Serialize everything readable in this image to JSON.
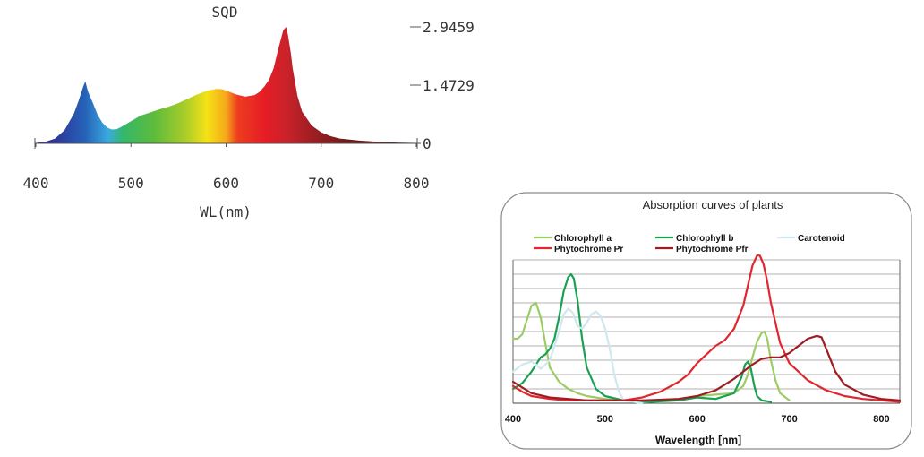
{
  "chart_data": [
    {
      "type": "area",
      "title": "SQD",
      "xlabel": "WL(nm)",
      "ylabel": "",
      "xlim": [
        400,
        800
      ],
      "ylim": [
        0,
        2.9459
      ],
      "x_ticks": [
        "400",
        "500",
        "600",
        "700",
        "800"
      ],
      "y_ticks": [
        "2.9459",
        "1.4729",
        "0"
      ],
      "y_tick_values": [
        2.9459,
        1.4729,
        0
      ],
      "x_tick_values": [
        400,
        500,
        600,
        700,
        800
      ],
      "series": [
        {
          "name": "SQD",
          "x": [
            400,
            410,
            420,
            430,
            440,
            445,
            450,
            452,
            455,
            460,
            465,
            470,
            475,
            480,
            485,
            490,
            500,
            510,
            520,
            530,
            540,
            550,
            560,
            570,
            580,
            590,
            595,
            600,
            610,
            620,
            630,
            635,
            640,
            645,
            650,
            655,
            660,
            663,
            665,
            668,
            670,
            675,
            680,
            690,
            700,
            710,
            720,
            740,
            760,
            780,
            800
          ],
          "y": [
            0.01,
            0.04,
            0.12,
            0.33,
            0.75,
            1.08,
            1.45,
            1.57,
            1.3,
            1.02,
            0.72,
            0.52,
            0.4,
            0.35,
            0.36,
            0.42,
            0.56,
            0.7,
            0.78,
            0.86,
            0.93,
            1.02,
            1.13,
            1.24,
            1.33,
            1.38,
            1.37,
            1.34,
            1.24,
            1.18,
            1.22,
            1.3,
            1.43,
            1.6,
            1.9,
            2.4,
            2.85,
            2.95,
            2.75,
            2.3,
            1.9,
            1.2,
            0.8,
            0.45,
            0.28,
            0.18,
            0.12,
            0.07,
            0.04,
            0.02,
            0.01
          ]
        }
      ]
    },
    {
      "type": "line",
      "title": "Absorption curves of plants",
      "xlabel": "Wavelength [nm]",
      "ylabel": "",
      "xlim": [
        400,
        820
      ],
      "ylim": [
        0,
        100
      ],
      "x_ticks": [
        "400",
        "500",
        "600",
        "700",
        "800"
      ],
      "x_tick_values": [
        400,
        500,
        600,
        700,
        800
      ],
      "grid": true,
      "legend_position": "top",
      "series": [
        {
          "name": "Chlorophyll a",
          "color": "#9ccc65",
          "x": [
            400,
            405,
            410,
            415,
            420,
            425,
            430,
            435,
            440,
            450,
            460,
            470,
            480,
            500,
            520,
            550,
            580,
            600,
            620,
            640,
            650,
            655,
            660,
            665,
            670,
            673,
            676,
            680,
            685,
            690,
            700
          ],
          "y": [
            45,
            45,
            48,
            58,
            68,
            70,
            60,
            42,
            25,
            15,
            10,
            7,
            5,
            3,
            2,
            2,
            3,
            5,
            6,
            7,
            12,
            20,
            32,
            43,
            49,
            50,
            45,
            30,
            16,
            7,
            2
          ]
        },
        {
          "name": "Chlorophyll b",
          "color": "#1aa053",
          "x": [
            400,
            410,
            420,
            430,
            435,
            440,
            445,
            450,
            455,
            460,
            463,
            466,
            470,
            475,
            480,
            490,
            500,
            520,
            550,
            580,
            600,
            620,
            640,
            648,
            652,
            655,
            658,
            662,
            665,
            670,
            680
          ],
          "y": [
            10,
            14,
            22,
            32,
            34,
            38,
            45,
            60,
            78,
            88,
            90,
            87,
            72,
            45,
            25,
            10,
            5,
            2,
            1,
            2,
            4,
            3,
            7,
            18,
            27,
            29,
            25,
            12,
            5,
            2,
            1
          ]
        },
        {
          "name": "Carotenoid",
          "color": "#cfe8f0",
          "x": [
            400,
            410,
            420,
            425,
            430,
            440,
            450,
            455,
            460,
            465,
            470,
            475,
            480,
            485,
            490,
            495,
            500,
            505,
            510,
            515,
            520,
            540
          ],
          "y": [
            22,
            27,
            29,
            27,
            24,
            30,
            50,
            62,
            66,
            63,
            54,
            52,
            56,
            62,
            64,
            61,
            52,
            38,
            20,
            8,
            2,
            0
          ]
        },
        {
          "name": "Phytochrome Pr",
          "color": "#e0262e",
          "x": [
            400,
            410,
            420,
            440,
            460,
            480,
            500,
            520,
            540,
            560,
            580,
            590,
            600,
            610,
            620,
            630,
            640,
            650,
            655,
            660,
            665,
            668,
            672,
            676,
            680,
            690,
            700,
            720,
            740,
            760,
            780,
            800,
            820
          ],
          "y": [
            12,
            8,
            5,
            3,
            2,
            2,
            2,
            2,
            4,
            8,
            15,
            20,
            28,
            34,
            40,
            44,
            52,
            68,
            82,
            96,
            103,
            103,
            97,
            85,
            70,
            42,
            28,
            16,
            9,
            5,
            3,
            2,
            1
          ]
        },
        {
          "name": "Phytochrome Pfr",
          "color": "#9e1c22",
          "x": [
            400,
            420,
            440,
            460,
            480,
            500,
            540,
            580,
            600,
            620,
            640,
            660,
            670,
            680,
            690,
            700,
            710,
            720,
            730,
            735,
            740,
            750,
            760,
            780,
            800,
            820
          ],
          "y": [
            15,
            7,
            4,
            3,
            2,
            2,
            2,
            3,
            5,
            9,
            17,
            27,
            31,
            32,
            32,
            35,
            40,
            45,
            47,
            46,
            38,
            22,
            13,
            6,
            3,
            2
          ]
        }
      ]
    }
  ]
}
